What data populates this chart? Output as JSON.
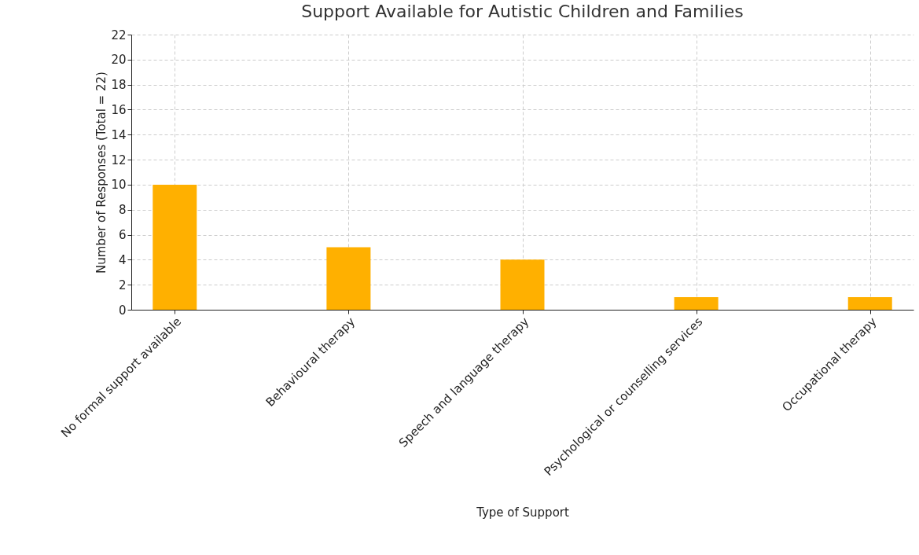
{
  "chart_data": {
    "type": "bar",
    "title": "Support Available for Autistic Children and Families",
    "xlabel": "Type of Support",
    "ylabel": "Number of Responses (Total = 22)",
    "categories": [
      "No formal support available",
      "Behavioural therapy",
      "Speech and language therapy",
      "Psychological or counselling services",
      "Occupational therapy"
    ],
    "values": [
      10,
      5,
      4,
      1,
      1
    ],
    "color": "#ffb000",
    "ylim": [
      0,
      22
    ],
    "yticks": [
      0,
      2,
      4,
      6,
      8,
      10,
      12,
      14,
      16,
      18,
      20,
      22
    ],
    "grid": true
  }
}
